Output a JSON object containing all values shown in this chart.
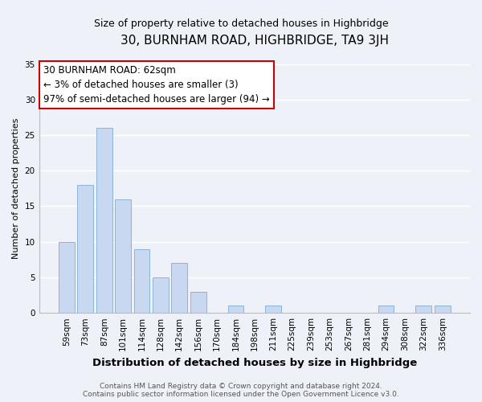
{
  "title": "30, BURNHAM ROAD, HIGHBRIDGE, TA9 3JH",
  "subtitle": "Size of property relative to detached houses in Highbridge",
  "xlabel": "Distribution of detached houses by size in Highbridge",
  "ylabel": "Number of detached properties",
  "categories": [
    "59sqm",
    "73sqm",
    "87sqm",
    "101sqm",
    "114sqm",
    "128sqm",
    "142sqm",
    "156sqm",
    "170sqm",
    "184sqm",
    "198sqm",
    "211sqm",
    "225sqm",
    "239sqm",
    "253sqm",
    "267sqm",
    "281sqm",
    "294sqm",
    "308sqm",
    "322sqm",
    "336sqm"
  ],
  "values": [
    10,
    18,
    26,
    16,
    9,
    5,
    7,
    3,
    0,
    1,
    0,
    1,
    0,
    0,
    0,
    0,
    0,
    1,
    0,
    1,
    1
  ],
  "bar_color": "#c8d8f0",
  "bar_edge_color": "#8ab4d8",
  "annotation_box_text": "30 BURNHAM ROAD: 62sqm\n← 3% of detached houses are smaller (3)\n97% of semi-detached houses are larger (94) →",
  "annotation_box_edge_color": "#cc0000",
  "annotation_box_facecolor": "#ffffff",
  "ylim": [
    0,
    35
  ],
  "yticks": [
    0,
    5,
    10,
    15,
    20,
    25,
    30,
    35
  ],
  "footer_line1": "Contains HM Land Registry data © Crown copyright and database right 2024.",
  "footer_line2": "Contains public sector information licensed under the Open Government Licence v3.0.",
  "bg_color": "#eef2f8",
  "plot_bg_color": "#eef2f8",
  "grid_color": "#ffffff",
  "title_fontsize": 11,
  "subtitle_fontsize": 9,
  "xlabel_fontsize": 9.5,
  "ylabel_fontsize": 8,
  "tick_fontsize": 7.5,
  "annotation_fontsize": 8.5,
  "footer_fontsize": 6.5
}
